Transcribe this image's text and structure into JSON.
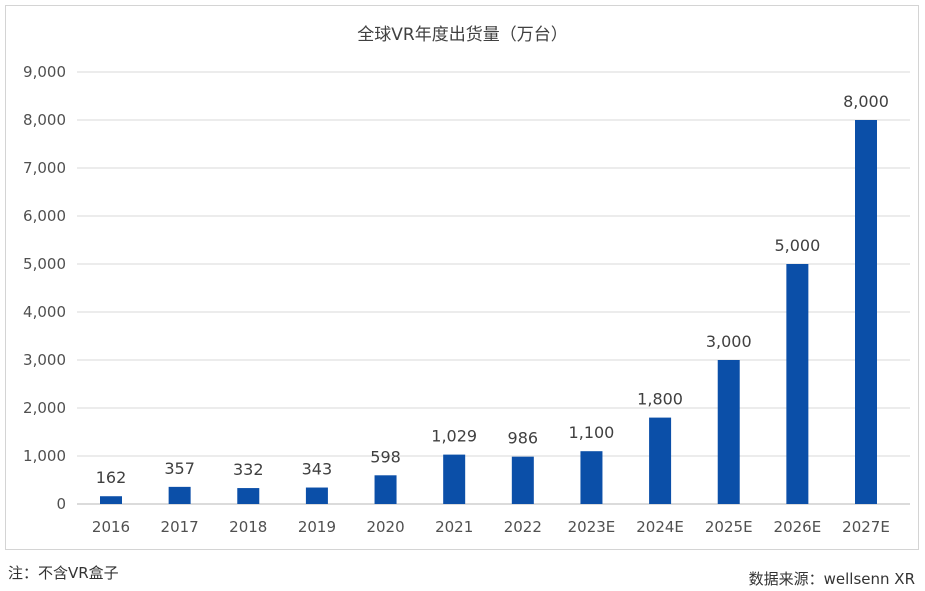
{
  "chart_data": {
    "type": "bar",
    "title": "全球VR年度出货量（万台）",
    "categories": [
      "2016",
      "2017",
      "2018",
      "2019",
      "2020",
      "2021",
      "2022",
      "2023E",
      "2024E",
      "2025E",
      "2026E",
      "2027E"
    ],
    "values": [
      162,
      357,
      332,
      343,
      598,
      1029,
      986,
      1100,
      1800,
      3000,
      5000,
      8000
    ],
    "data_labels": [
      "162",
      "357",
      "332",
      "343",
      "598",
      "1,029",
      "986",
      "1,100",
      "1,800",
      "3,000",
      "5,000",
      "8,000"
    ],
    "ylim": [
      0,
      9000
    ],
    "yticks": [
      "0",
      "1,000",
      "2,000",
      "3,000",
      "4,000",
      "5,000",
      "6,000",
      "7,000",
      "8,000",
      "9,000"
    ],
    "grid": true,
    "bar_color": "#0b4fa8",
    "xlabel": "",
    "ylabel": ""
  },
  "footer": {
    "note": "注：不含VR盒子",
    "source": "数据来源：wellsenn XR"
  }
}
